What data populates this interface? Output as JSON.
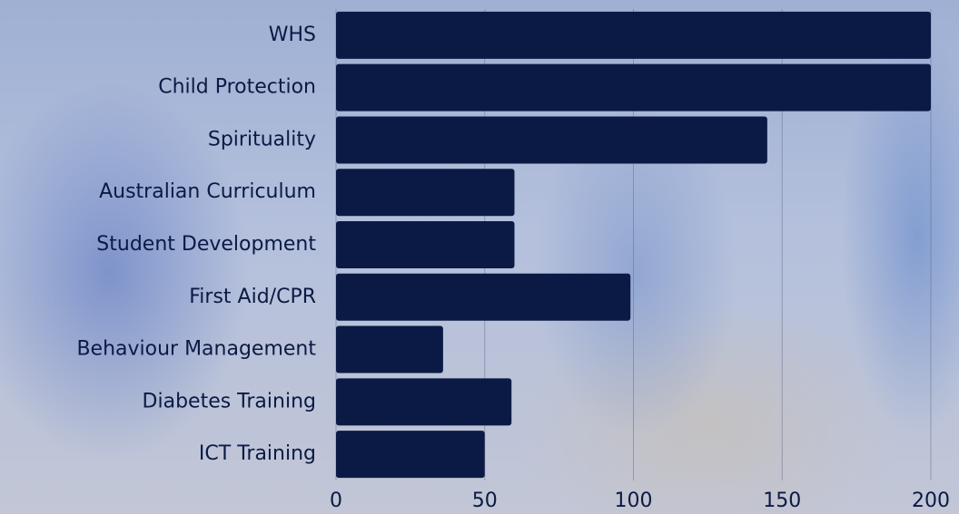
{
  "chart_data": {
    "type": "bar",
    "orientation": "horizontal",
    "categories": [
      "WHS",
      "Child Protection",
      "Spirituality",
      "Australian Curriculum",
      "Student Development",
      "First Aid/CPR",
      "Behaviour Management",
      "Diabetes Training",
      "ICT Training"
    ],
    "values": [
      200,
      200,
      145,
      60,
      60,
      99,
      36,
      59,
      50
    ],
    "color": "#0b1a45",
    "xlim": [
      0,
      200
    ],
    "xticks": [
      0,
      50,
      100,
      150,
      200
    ],
    "grid": true
  }
}
